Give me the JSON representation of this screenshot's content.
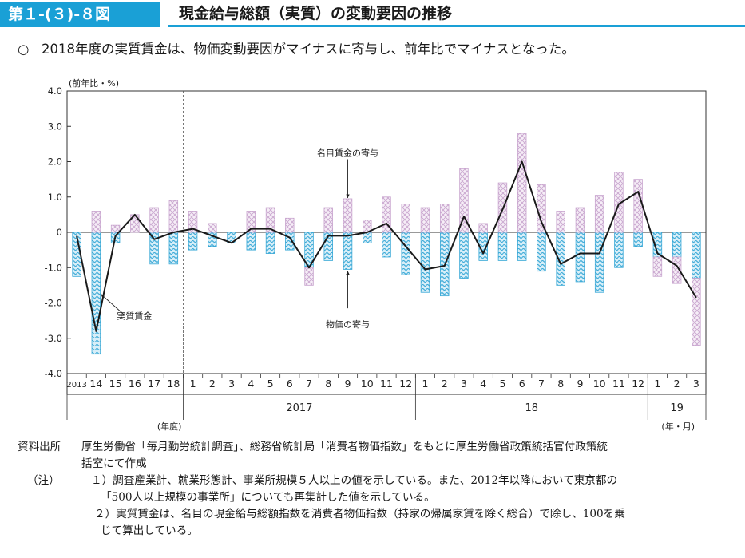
{
  "header": {
    "figure_label": "第１-(３)-８図",
    "title": "現金給与総額（実質）の変動要因の推移"
  },
  "summary": {
    "bullet": "○",
    "text": "2018年度の実質賃金は、物価変動要因がマイナスに寄与し、前年比でマイナスとなった。"
  },
  "chart_data": {
    "type": "bar",
    "unit_label": "(前年比・%)",
    "ylim": [
      -4.0,
      4.0
    ],
    "y_ticks": [
      "4.0",
      "3.0",
      "2.0",
      "1.0",
      "0",
      "-1.0",
      "-2.0",
      "-3.0",
      "-4.0"
    ],
    "categories": [
      "2013",
      "14",
      "15",
      "16",
      "17",
      "18",
      "1",
      "2",
      "3",
      "4",
      "5",
      "6",
      "7",
      "8",
      "9",
      "10",
      "11",
      "12",
      "1",
      "2",
      "3",
      "4",
      "5",
      "6",
      "7",
      "8",
      "9",
      "10",
      "11",
      "12",
      "1",
      "2",
      "3"
    ],
    "group_labels": [
      {
        "label": "2017",
        "start": 6,
        "end": 17
      },
      {
        "label": "18",
        "start": 18,
        "end": 29
      },
      {
        "label": "19",
        "start": 30,
        "end": 32
      }
    ],
    "x_unit_left": "(年度)",
    "x_unit_right": "(年・月)",
    "series": [
      {
        "name": "名目賃金の寄与",
        "kind": "bar",
        "pattern": "crosshatch-pink",
        "values": [
          0.0,
          0.6,
          0.2,
          0.5,
          0.7,
          0.9,
          0.6,
          0.25,
          0.0,
          0.6,
          0.7,
          0.4,
          -0.5,
          0.7,
          0.95,
          0.35,
          1.0,
          0.8,
          0.7,
          0.8,
          1.8,
          0.25,
          1.4,
          2.8,
          1.35,
          0.6,
          0.7,
          1.05,
          1.7,
          1.5,
          -0.55,
          -0.75,
          -1.9
        ]
      },
      {
        "name": "物価の寄与",
        "kind": "bar",
        "pattern": "wave-blue",
        "values": [
          -1.25,
          -3.45,
          -0.3,
          0.0,
          -0.9,
          -0.9,
          -0.5,
          -0.4,
          -0.3,
          -0.5,
          -0.6,
          -0.5,
          -1.0,
          -0.8,
          -1.05,
          -0.3,
          -0.7,
          -1.2,
          -1.7,
          -1.8,
          -1.3,
          -0.8,
          -0.8,
          -0.8,
          -1.1,
          -1.5,
          -1.4,
          -1.7,
          -1.0,
          -0.4,
          -0.7,
          -0.7,
          -1.3
        ]
      },
      {
        "name": "実質賃金",
        "kind": "line",
        "values": [
          -0.1,
          -2.8,
          -0.1,
          0.5,
          -0.2,
          0.0,
          0.1,
          -0.1,
          -0.3,
          0.1,
          0.1,
          -0.15,
          -1.0,
          -0.1,
          -0.1,
          0.0,
          0.25,
          -0.4,
          -1.05,
          -0.95,
          0.45,
          -0.6,
          0.65,
          2.0,
          0.3,
          -0.9,
          -0.6,
          -0.6,
          0.8,
          1.15,
          -0.6,
          -0.95,
          -1.85
        ]
      }
    ],
    "annotations": [
      {
        "text": "名目賃金の寄与",
        "target": "nominal",
        "index": 14
      },
      {
        "text": "実質賃金",
        "target": "real",
        "index": 1
      },
      {
        "text": "物価の寄与",
        "target": "price",
        "index": 14
      }
    ],
    "colors": {
      "nominal": "#c9a6cf",
      "price": "#38a8d6",
      "line": "#1a1a1a",
      "axis": "#333333"
    }
  },
  "notes": {
    "source_label": "資料出所",
    "source_line1": "厚生労働省「毎月勤労統計調査」、総務省統計局「消費者物価指数」をもとに厚生労働省政策統括官付政策統",
    "source_line2": "括室にて作成",
    "note_label": "（注）",
    "note1_line1": "１）調査産業計、就業形態計、事業所規模５人以上の値を示している。また、2012年以降において東京都の",
    "note1_line2": "「500人以上規模の事業所」についても再集計した値を示している。",
    "note2_line1": "２）実質賃金は、名目の現金給与総額指数を消費者物価指数（持家の帰属家賃を除く総合）で除し、100を乗",
    "note2_line2": "じて算出している。"
  }
}
